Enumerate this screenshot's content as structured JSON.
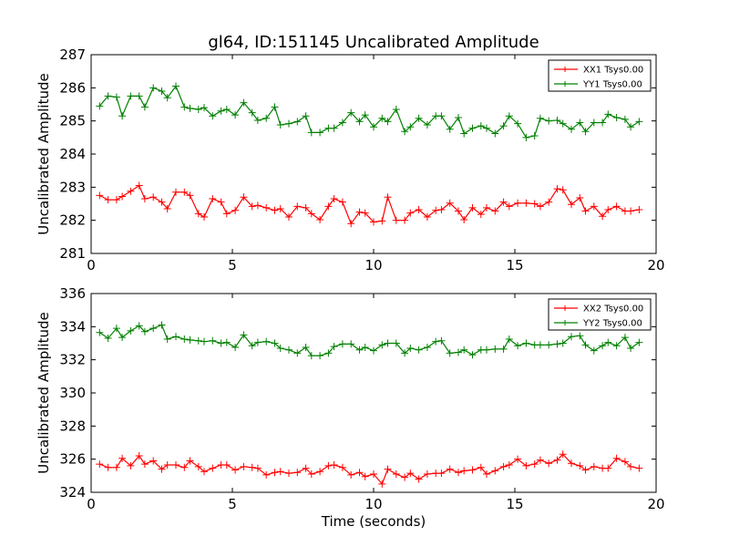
{
  "chart_data": [
    {
      "type": "line",
      "title": "gl64, ID:151145 Uncalibrated Amplitude",
      "xlabel": "",
      "ylabel": "Uncalibrated Amplitude",
      "xlim": [
        0,
        20
      ],
      "ylim": [
        281,
        287
      ],
      "xticks": [
        "0",
        "5",
        "10",
        "15",
        "20"
      ],
      "yticks": [
        "281",
        "282",
        "283",
        "284",
        "285",
        "286",
        "287"
      ],
      "legend_position": "top-right",
      "x": [
        0.3,
        0.6,
        0.9,
        1.1,
        1.4,
        1.7,
        1.9,
        2.2,
        2.5,
        2.7,
        3.0,
        3.3,
        3.5,
        3.8,
        4.0,
        4.3,
        4.6,
        4.8,
        5.1,
        5.4,
        5.7,
        5.9,
        6.2,
        6.5,
        6.7,
        7.0,
        7.3,
        7.6,
        7.8,
        8.1,
        8.4,
        8.6,
        8.9,
        9.2,
        9.5,
        9.7,
        10.0,
        10.3,
        10.5,
        10.8,
        11.1,
        11.3,
        11.6,
        11.9,
        12.2,
        12.4,
        12.7,
        13.0,
        13.2,
        13.5,
        13.8,
        14.0,
        14.3,
        14.6,
        14.8,
        15.1,
        15.4,
        15.7,
        15.9,
        16.2,
        16.5,
        16.7,
        17.0,
        17.3,
        17.5,
        17.8,
        18.1,
        18.3,
        18.6,
        18.9,
        19.1,
        19.4
      ],
      "series": [
        {
          "name": "XX1 Tsys0.00",
          "color": "#ff0000",
          "values": [
            282.75,
            282.62,
            282.62,
            282.72,
            282.88,
            283.05,
            282.65,
            282.7,
            282.55,
            282.35,
            282.85,
            282.85,
            282.75,
            282.2,
            282.1,
            282.65,
            282.55,
            282.2,
            282.3,
            282.7,
            282.42,
            282.45,
            282.38,
            282.3,
            282.35,
            282.1,
            282.42,
            282.38,
            282.2,
            282.02,
            282.42,
            282.65,
            282.55,
            281.9,
            282.25,
            282.22,
            281.95,
            281.98,
            282.7,
            282.0,
            282.0,
            282.22,
            282.32,
            282.1,
            282.3,
            282.32,
            282.52,
            282.28,
            282.02,
            282.38,
            282.18,
            282.38,
            282.28,
            282.55,
            282.42,
            282.52,
            282.52,
            282.5,
            282.42,
            282.55,
            282.95,
            282.92,
            282.48,
            282.68,
            282.28,
            282.42,
            282.12,
            282.32,
            282.42,
            282.28,
            282.28,
            282.32
          ]
        },
        {
          "name": "YY1 Tsys0.00",
          "color": "#008000",
          "values": [
            285.45,
            285.75,
            285.72,
            285.15,
            285.75,
            285.75,
            285.42,
            286.0,
            285.9,
            285.7,
            286.05,
            285.42,
            285.38,
            285.35,
            285.4,
            285.15,
            285.3,
            285.35,
            285.18,
            285.55,
            285.25,
            285.02,
            285.08,
            285.42,
            284.88,
            284.92,
            284.98,
            285.15,
            284.65,
            284.65,
            284.78,
            284.78,
            284.95,
            285.25,
            284.98,
            285.18,
            284.82,
            285.08,
            284.98,
            285.35,
            284.68,
            284.82,
            285.08,
            284.88,
            285.15,
            285.15,
            284.75,
            285.1,
            284.62,
            284.78,
            284.85,
            284.78,
            284.62,
            284.85,
            285.15,
            284.92,
            284.5,
            284.55,
            285.08,
            285.0,
            285.02,
            284.92,
            284.75,
            284.95,
            284.68,
            284.95,
            284.95,
            285.2,
            285.1,
            285.05,
            284.82,
            284.98
          ]
        }
      ]
    },
    {
      "type": "line",
      "title": "",
      "xlabel": "Time (seconds)",
      "ylabel": "Uncalibrated Amplitude",
      "xlim": [
        0,
        20
      ],
      "ylim": [
        324,
        336
      ],
      "xticks": [
        "0",
        "5",
        "10",
        "15",
        "20"
      ],
      "yticks": [
        "324",
        "326",
        "328",
        "330",
        "332",
        "334",
        "336"
      ],
      "legend_position": "top-right",
      "x": [
        0.3,
        0.6,
        0.9,
        1.1,
        1.4,
        1.7,
        1.9,
        2.2,
        2.5,
        2.7,
        3.0,
        3.3,
        3.5,
        3.8,
        4.0,
        4.3,
        4.6,
        4.8,
        5.1,
        5.4,
        5.7,
        5.9,
        6.2,
        6.5,
        6.7,
        7.0,
        7.3,
        7.6,
        7.8,
        8.1,
        8.4,
        8.6,
        8.9,
        9.2,
        9.5,
        9.7,
        10.0,
        10.3,
        10.5,
        10.8,
        11.1,
        11.3,
        11.6,
        11.9,
        12.2,
        12.4,
        12.7,
        13.0,
        13.2,
        13.5,
        13.8,
        14.0,
        14.3,
        14.6,
        14.8,
        15.1,
        15.4,
        15.7,
        15.9,
        16.2,
        16.5,
        16.7,
        17.0,
        17.3,
        17.5,
        17.8,
        18.1,
        18.3,
        18.6,
        18.9,
        19.1,
        19.4
      ],
      "series": [
        {
          "name": "XX2 Tsys0.00",
          "color": "#ff0000",
          "values": [
            325.7,
            325.5,
            325.5,
            326.05,
            325.6,
            326.2,
            325.7,
            325.9,
            325.4,
            325.65,
            325.65,
            325.5,
            325.9,
            325.55,
            325.25,
            325.45,
            325.65,
            325.65,
            325.35,
            325.55,
            325.5,
            325.45,
            325.05,
            325.2,
            325.25,
            325.15,
            325.2,
            325.45,
            325.1,
            325.25,
            325.6,
            325.65,
            325.5,
            325.05,
            325.2,
            324.95,
            325.1,
            324.5,
            325.4,
            325.1,
            324.9,
            325.15,
            324.8,
            325.1,
            325.15,
            325.15,
            325.4,
            325.2,
            325.3,
            325.35,
            325.5,
            325.1,
            325.3,
            325.55,
            325.65,
            326.0,
            325.6,
            325.7,
            325.95,
            325.75,
            325.95,
            326.3,
            325.75,
            325.6,
            325.35,
            325.55,
            325.45,
            325.45,
            326.05,
            325.85,
            325.55,
            325.45
          ]
        },
        {
          "name": "YY2 Tsys0.00",
          "color": "#008000",
          "values": [
            333.65,
            333.3,
            333.9,
            333.35,
            333.75,
            334.05,
            333.7,
            333.9,
            334.1,
            333.25,
            333.4,
            333.25,
            333.2,
            333.15,
            333.1,
            333.15,
            333.0,
            333.05,
            332.75,
            333.5,
            332.85,
            333.05,
            333.1,
            333.0,
            332.7,
            332.6,
            332.4,
            332.75,
            332.25,
            332.25,
            332.4,
            332.8,
            332.95,
            332.95,
            332.6,
            332.75,
            332.55,
            332.9,
            333.0,
            333.0,
            332.4,
            332.7,
            332.6,
            332.75,
            333.1,
            333.15,
            332.4,
            332.45,
            332.6,
            332.3,
            332.6,
            332.6,
            332.65,
            332.65,
            333.25,
            332.85,
            333.0,
            332.9,
            332.9,
            332.9,
            332.95,
            333.0,
            333.4,
            333.45,
            332.9,
            332.55,
            332.85,
            333.05,
            332.85,
            333.35,
            332.7,
            333.05
          ]
        }
      ]
    }
  ]
}
